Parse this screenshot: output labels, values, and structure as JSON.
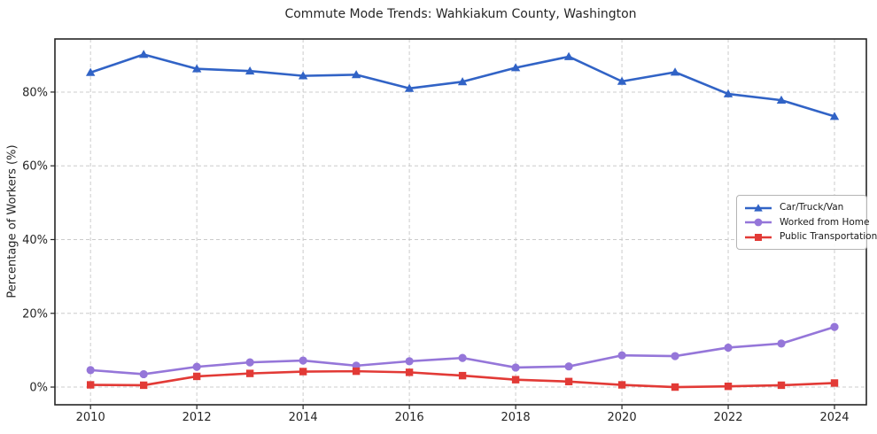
{
  "title": "Commute Mode Trends: Wahkiakum County, Washington",
  "chart_data": {
    "type": "line",
    "title": "Commute Mode Trends: Wahkiakum County, Washington",
    "xlabel": "",
    "ylabel": "Percentage of Workers (%)",
    "x": [
      2010,
      2011,
      2012,
      2013,
      2014,
      2015,
      2016,
      2017,
      2018,
      2019,
      2020,
      2021,
      2022,
      2023,
      2024
    ],
    "series": [
      {
        "name": "Car/Truck/Van",
        "marker": "triangle",
        "color": "#3163c6",
        "values": [
          85.3,
          90.2,
          86.3,
          85.7,
          84.4,
          84.7,
          81.0,
          82.8,
          86.6,
          89.6,
          82.9,
          85.4,
          79.5,
          77.8,
          73.4
        ]
      },
      {
        "name": "Worked from Home",
        "marker": "circle",
        "color": "#9576d9",
        "values": [
          4.6,
          3.5,
          5.5,
          6.7,
          7.2,
          5.8,
          7.0,
          7.9,
          5.3,
          5.6,
          8.6,
          8.4,
          10.7,
          11.8,
          16.3
        ]
      },
      {
        "name": "Public Transportation",
        "marker": "square",
        "color": "#e23a36",
        "values": [
          0.6,
          0.5,
          2.9,
          3.7,
          4.2,
          4.3,
          4.0,
          3.1,
          2.0,
          1.5,
          0.6,
          0.0,
          0.2,
          0.5,
          1.1
        ]
      }
    ],
    "xticks": [
      2010,
      2012,
      2014,
      2016,
      2018,
      2020,
      2022,
      2024
    ],
    "yticks": [
      0,
      20,
      40,
      60,
      80
    ],
    "ytick_suffix": "%",
    "xlim": [
      2009.33,
      2024.6
    ],
    "ylim": [
      -4.8,
      94.4
    ],
    "grid": true,
    "grid_style": "dashed",
    "legend_position": "center right",
    "colors": {
      "grid": "#cccccc",
      "spine": "#262626",
      "tick_text": "#262626",
      "legend_border": "#b4b4b4"
    }
  }
}
